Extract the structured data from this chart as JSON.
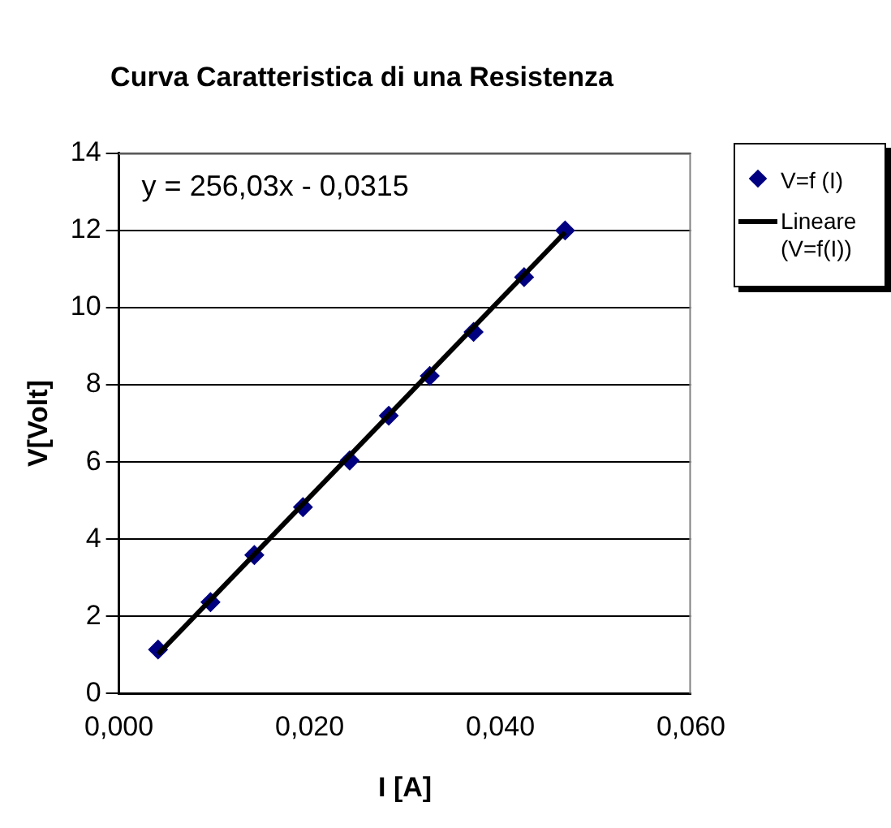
{
  "chart_data": {
    "type": "scatter",
    "title": "Curva Caratteristica di una Resistenza",
    "xlabel": "I [A]",
    "ylabel": "V[Volt]",
    "annotations": [
      "y = 256,03x - 0,0315"
    ],
    "xlim": [
      0,
      0.06
    ],
    "xticks": [
      {
        "value": 0,
        "label": "0,000"
      },
      {
        "value": 0.02,
        "label": "0,020"
      },
      {
        "value": 0.04,
        "label": "0,040"
      },
      {
        "value": 0.06,
        "label": "0,060"
      }
    ],
    "ylim": [
      0,
      14
    ],
    "yticks": [
      0,
      2,
      4,
      6,
      8,
      10,
      12,
      14
    ],
    "grid": "y",
    "legend": "right",
    "marker": "diamond",
    "series": [
      {
        "name": "V=f (I)",
        "color": "#000080",
        "x": [
          0.0041,
          0.0096,
          0.0142,
          0.0193,
          0.0242,
          0.0283,
          0.0326,
          0.0372,
          0.0425,
          0.0468
        ],
        "values": [
          1.14,
          2.37,
          3.59,
          4.83,
          6.04,
          7.2,
          8.23,
          9.37,
          10.79,
          12.0
        ]
      },
      {
        "name": "Lineare (V=f(I))",
        "type": "line",
        "color": "#000000",
        "marker": "none",
        "line_style": "solid",
        "x": [
          0.0041,
          0.0468
        ],
        "values": [
          1.02,
          11.95
        ]
      }
    ]
  }
}
